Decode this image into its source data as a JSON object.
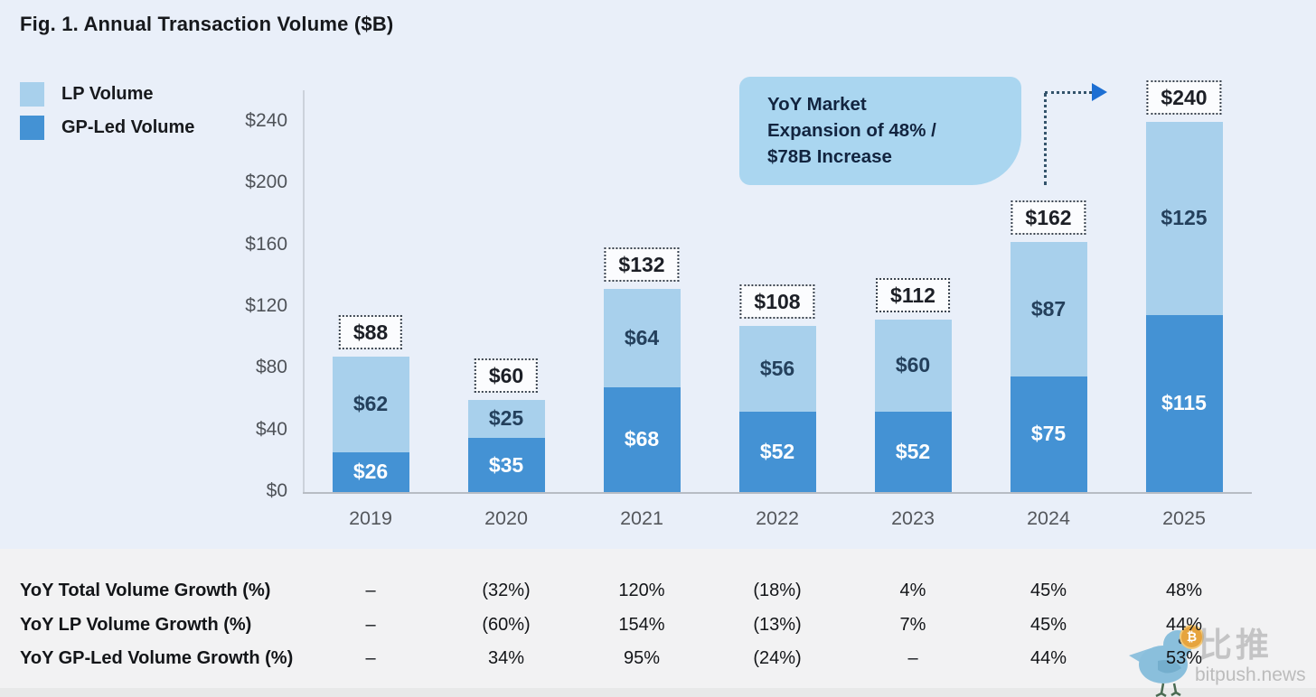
{
  "title": "Fig. 1. Annual Transaction Volume ($B)",
  "legend": {
    "items": [
      {
        "label": "LP Volume",
        "color": "#a8d0ec"
      },
      {
        "label": "GP-Led Volume",
        "color": "#4492d4"
      }
    ]
  },
  "chart_data": {
    "type": "bar",
    "stacked": true,
    "title": "Fig. 1. Annual Transaction Volume ($B)",
    "categories": [
      "2019",
      "2020",
      "2021",
      "2022",
      "2023",
      "2024",
      "2025"
    ],
    "series": [
      {
        "name": "GP-Led Volume",
        "color": "#4492d4",
        "values": [
          26,
          35,
          68,
          52,
          52,
          75,
          115
        ],
        "labels": [
          "$26",
          "$35",
          "$68",
          "$52",
          "$52",
          "$75",
          "$115"
        ]
      },
      {
        "name": "LP Volume",
        "color": "#a8d0ec",
        "values": [
          62,
          25,
          64,
          56,
          60,
          87,
          125
        ],
        "labels": [
          "$62",
          "$25",
          "$64",
          "$56",
          "$60",
          "$87",
          "$125"
        ]
      }
    ],
    "totals": [
      88,
      60,
      132,
      108,
      112,
      162,
      240
    ],
    "total_labels": [
      "$88",
      "$60",
      "$132",
      "$108",
      "$112",
      "$162",
      "$240"
    ],
    "ytick_values": [
      0,
      40,
      80,
      120,
      160,
      200,
      240
    ],
    "ytick_labels": [
      "$0",
      "$40",
      "$80",
      "$120",
      "$160",
      "$200",
      "$240"
    ],
    "ylim": [
      0,
      240
    ],
    "xlabel": "",
    "ylabel": "",
    "grid": false,
    "legend_position": "top-left"
  },
  "callout": {
    "lines": [
      "YoY Market",
      "Expansion of 48% /",
      "$78B Increase"
    ]
  },
  "table": {
    "rows": [
      {
        "label": "YoY Total Volume Growth (%)",
        "values": [
          "–",
          "(32%)",
          "120%",
          "(18%)",
          "4%",
          "45%",
          "48%"
        ]
      },
      {
        "label": "YoY LP Volume Growth (%)",
        "values": [
          "–",
          "(60%)",
          "154%",
          "(13%)",
          "7%",
          "45%",
          "44%"
        ]
      },
      {
        "label": "YoY GP-Led Volume Growth (%)",
        "values": [
          "–",
          "34%",
          "95%",
          "(24%)",
          "–",
          "44%",
          "53%"
        ]
      }
    ]
  },
  "watermark": {
    "cn": "比推",
    "en": "bitpush.news",
    "coin_glyph": "₿"
  }
}
